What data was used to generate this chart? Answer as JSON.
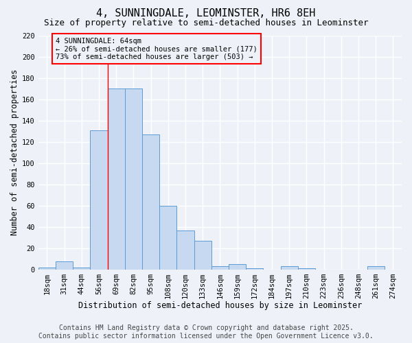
{
  "title": "4, SUNNINGDALE, LEOMINSTER, HR6 8EH",
  "subtitle": "Size of property relative to semi-detached houses in Leominster",
  "xlabel": "Distribution of semi-detached houses by size in Leominster",
  "ylabel": "Number of semi-detached properties",
  "categories": [
    "18sqm",
    "31sqm",
    "44sqm",
    "56sqm",
    "69sqm",
    "82sqm",
    "95sqm",
    "108sqm",
    "120sqm",
    "133sqm",
    "146sqm",
    "159sqm",
    "172sqm",
    "184sqm",
    "197sqm",
    "210sqm",
    "223sqm",
    "236sqm",
    "248sqm",
    "261sqm",
    "274sqm"
  ],
  "values": [
    2,
    8,
    2,
    131,
    170,
    170,
    127,
    60,
    37,
    27,
    3,
    5,
    1,
    0,
    3,
    1,
    0,
    0,
    0,
    3,
    0
  ],
  "bar_color": "#c6d9f1",
  "bar_edge_color": "#5b9bd5",
  "annotation_text": "4 SUNNINGDALE: 64sqm\n← 26% of semi-detached houses are smaller (177)\n73% of semi-detached houses are larger (503) →",
  "vline_x_index": 3.5,
  "footer_line1": "Contains HM Land Registry data © Crown copyright and database right 2025.",
  "footer_line2": "Contains public sector information licensed under the Open Government Licence v3.0.",
  "ylim": [
    0,
    220
  ],
  "yticks": [
    0,
    20,
    40,
    60,
    80,
    100,
    120,
    140,
    160,
    180,
    200,
    220
  ],
  "background_color": "#eef2f8",
  "grid_color": "#ffffff",
  "title_fontsize": 11,
  "subtitle_fontsize": 9,
  "axis_label_fontsize": 8.5,
  "tick_fontsize": 7.5,
  "annotation_fontsize": 7.5,
  "footer_fontsize": 7
}
